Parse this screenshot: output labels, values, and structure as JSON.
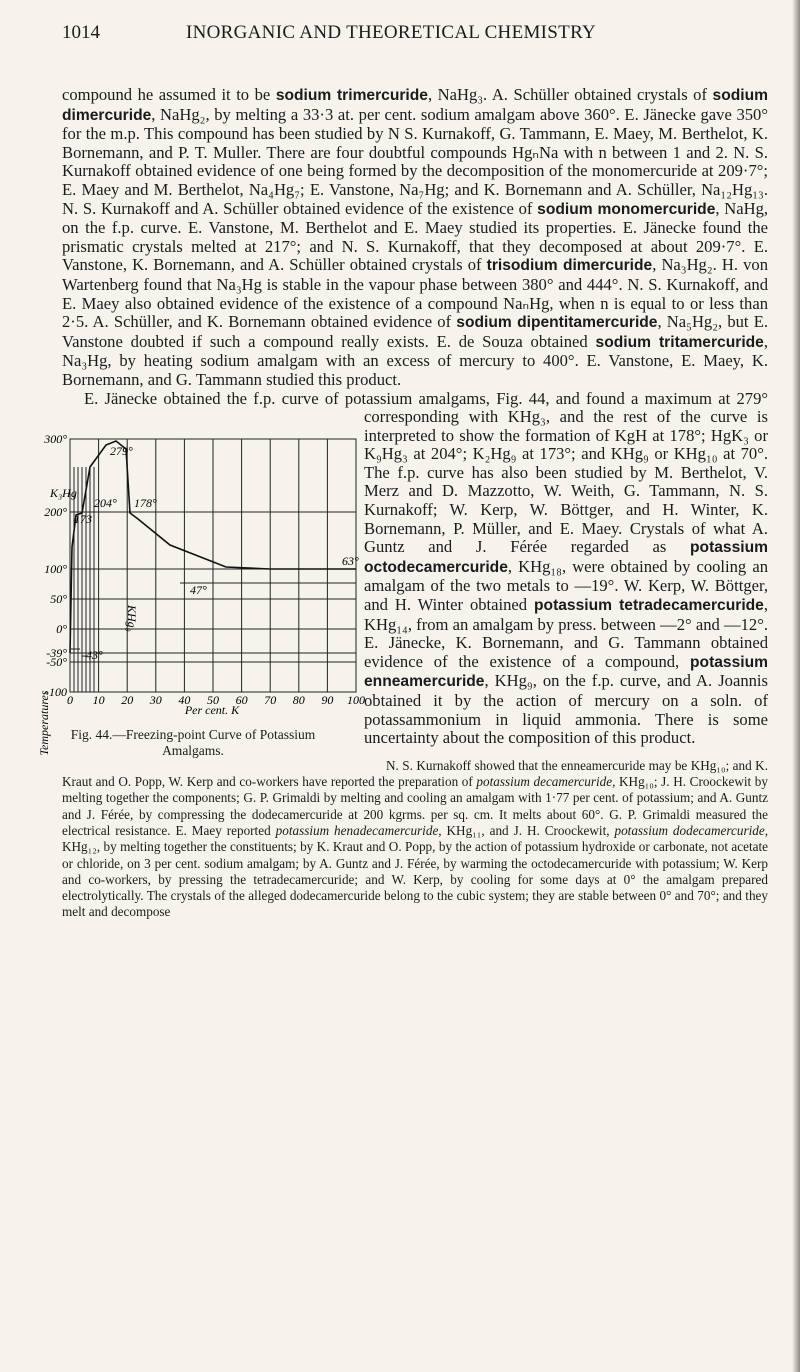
{
  "header": {
    "page_number": "1014",
    "running_title": "INORGANIC AND THEORETICAL CHEMISTRY"
  },
  "paragraphs": [
    [
      "compound he assumed it to be ",
      "sodium trimercuride",
      ", NaHg₃. A. Schüller obtained crystals of ",
      "sodium dimercuride",
      ", NaHg₂, by melting a 33·3 at. per cent. sodium amalgam above 360°. E. Jänecke gave 350° for the m.p. This compound has been studied by N S. Kurnakoff, G. Tammann, E. Maey, M. Berthelot, K. Bornemann, and P. T. Muller. There are four doubtful compounds HgₙNa with n between 1 and 2. N. S. Kurnakoff obtained evidence of one being formed by the decomposition of the monomercuride at 209·7°; E. Maey and M. Berthelot, Na₄Hg₇; E. Vanstone, Na₇Hg; and K. Bornemann and A. Schüller, Na₁₂Hg₁₃. N. S. Kurnakoff and A. Schüller obtained evidence of the existence of ",
      "sodium monomercuride",
      ", NaHg, on the f.p. curve. E. Vanstone, M. Berthelot and E. Maey studied its properties. E. Jänecke found the prismatic crystals melted at 217°; and N. S. Kurnakoff, that they decomposed at about 209·7°. E. Vanstone, K. Bornemann, and A. Schüller obtained crystals of ",
      "trisodium dimercuride",
      ", Na₃Hg₂. H. von Wartenberg found that Na₃Hg is stable in the vapour phase between 380° and 444°. N. S. Kurnakoff, and E. Maey also obtained evidence of the existence of a compound NaₙHg, when n is equal to or less than 2·5. A. Schüller, and K. Bornemann obtained evidence of ",
      "sodium dipentitamercuride",
      ", Na₅Hg₂, but E. Vanstone doubted if such a compound really exists. E. de Souza obtained ",
      "sodium tritamercuride",
      ", Na₃Hg, by heating sodium amalgam with an excess of mercury to 400°. E. Vanstone, E. Maey, K. Bornemann, and G. Tammann studied this product."
    ],
    [
      "E. Jänecke obtained the f.p. curve of potassium amalgams, Fig. 44, and found a maximum at 279° corresponding with KHg₃, and the rest of the curve is interpreted to show the formation of KgH at 178°; HgK₃ or K₉Hg₃ at 204°; K₂Hg₉ at 173°; and KHg₉ or KHg₁₀ at 70°. The f.p. curve has also been studied by M. Berthelot, V. Merz and D. Mazzotto, W. Weith, G. Tammann, N. S. Kurnakoff; W. Kerp, W. Böttger, and H. Winter, K. Bornemann, P. Müller, and E. Maey. Crystals of what A. Guntz and J. Férée regarded as ",
      "potassium octodecamercuride",
      ", KHg₁₈, were obtained by cooling an amalgam of the two metals to —19°. W. Kerp, W. Böttger, and H. Winter obtained ",
      "potassium tetradecamercuride",
      ", KHg₁₄, from an amalgam by press. between —2° and —12°. E. Jänecke, K. Bornemann, and G. Tammann obtained evidence of the existence of a compound, ",
      "potassium enneamercuride",
      ", KHg₉, on the f.p. curve, and A. Joannis obtained it by the action of mercury on a soln. of potassammonium in liquid ammonia. There is some uncertainty about the composition of this product."
    ]
  ],
  "note": [
    "N. S. Kurnakoff showed that the enneamercuride may be KHg₁₀; and K. Kraut and O. Popp, W. Kerp and co-workers have reported the preparation of ",
    "potassium decamercuride,",
    " KHg₁₀; J. H. Croockewit by melting together the components; G. P. Grimaldi by melting and cooling an amalgam with 1·77 per cent. of potassium; and A. Guntz and J. Férée, by compressing the dodecamercuride at 200 kgrms. per sq. cm. It melts about 60°. G. P. Grimaldi measured the electrical resistance. E. Maey reported ",
    "potassium henadecamercuride,",
    " KHg₁₁, and J. H. Croockewit, ",
    "potassium dodecamercuride,",
    " KHg₁₂, by melting together the constituents; by K. Kraut and O. Popp, by the action of potassium hydroxide or carbonate, not acetate or chloride, on 3 per cent. sodium amalgam; by A. Guntz and J. Férée, by warming the octodecamercuride with potassium; W. Kerp and co-workers, by pressing the tetradecamercuride; and W. Kerp, by cooling for some days at 0° the amalgam prepared electrolytically. The crystals of the alleged dodecamercuride belong to the cubic system; they are stable between 0° and 70°; and they melt and decompose"
  ],
  "figure": {
    "y_axis_label": "Temperatures",
    "x_axis_label": "Per cent. K",
    "yticks": [
      "300°",
      "200°",
      "100°",
      "50°",
      "0°",
      "-39°",
      "-50°",
      "-100"
    ],
    "xticks": [
      "0",
      "10",
      "20",
      "30",
      "40",
      "50",
      "60",
      "70",
      "80",
      "90",
      "100"
    ],
    "annotations": [
      "279°",
      "204°",
      "178°",
      "173",
      "63°",
      "47°",
      "-43°",
      "K₃Hg",
      "KHg₉"
    ],
    "caption": "Fig. 44.—Freezing-point Curve of Potassium Amalgams."
  }
}
